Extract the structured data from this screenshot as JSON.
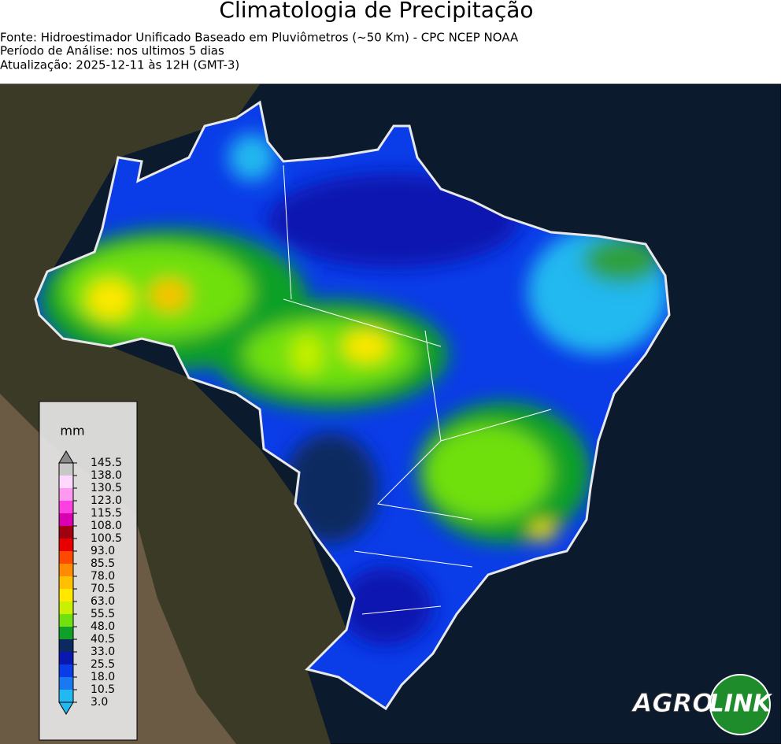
{
  "header": {
    "title": "Climatologia de Precipitação",
    "lines": [
      "Fonte: Hidroestimador Unificado Baseado em Pluviômetros (~50 Km) - CPC NCEP NOAA",
      "Período de Análise: nos ultimos 5 dias",
      "Atualização: 2025-12-11 às 12H (GMT-3)"
    ]
  },
  "colorbar": {
    "unit": "mm",
    "ticks": [
      {
        "value": 3,
        "label": "3.0"
      },
      {
        "value": 10.5,
        "label": "10.5"
      },
      {
        "value": 18,
        "label": "18.0"
      },
      {
        "value": 25.5,
        "label": "25.5"
      },
      {
        "value": 33,
        "label": "33.0"
      },
      {
        "value": 40.5,
        "label": "40.5"
      },
      {
        "value": 48,
        "label": "48.0"
      },
      {
        "value": 55.5,
        "label": "55.5"
      },
      {
        "value": 63,
        "label": "63.0"
      },
      {
        "value": 70.5,
        "label": "70.5"
      },
      {
        "value": 78,
        "label": "78.0"
      },
      {
        "value": 85.5,
        "label": "85.5"
      },
      {
        "value": 93,
        "label": "93.0"
      },
      {
        "value": 100.5,
        "label": "100.5"
      },
      {
        "value": 108,
        "label": "108.0"
      },
      {
        "value": 115.5,
        "label": "115.5"
      },
      {
        "value": 123,
        "label": "123.0"
      },
      {
        "value": 130.5,
        "label": "130.5"
      },
      {
        "value": 138,
        "label": "138.0"
      },
      {
        "value": 145.5,
        "label": "145.5"
      }
    ],
    "colors": [
      "#22b8f0",
      "#1a78f0",
      "#0a3ce8",
      "#0818b0",
      "#0c2a60",
      "#10a028",
      "#70e010",
      "#c8f000",
      "#ffe800",
      "#ffc000",
      "#ff8c00",
      "#ff4800",
      "#e80000",
      "#a00010",
      "#d800b0",
      "#ff40e0",
      "#ff98f0",
      "#ffd8ff",
      "#c8c8c8"
    ],
    "under_color": "#22b8f0",
    "over_color": "#8a8a8a"
  },
  "logo": {
    "left": "AGRO",
    "right": "LINK"
  }
}
